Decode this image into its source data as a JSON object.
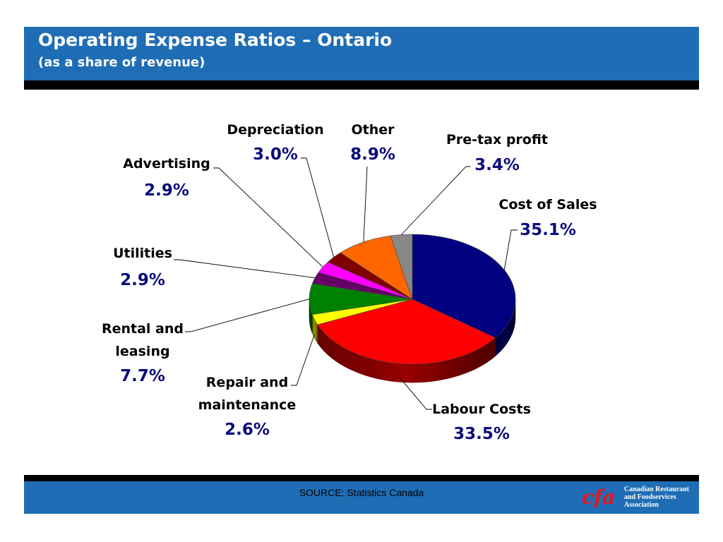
{
  "header": {
    "title": "Operating Expense Ratios – Ontario",
    "subtitle": "(as a share of revenue)"
  },
  "footer": {
    "source": "SOURCE: Statistics Canada",
    "logo_text": "cfa",
    "association": [
      "Canadian Restaurant",
      "and Foodservices",
      "Association"
    ]
  },
  "colors": {
    "brand_blue": "#1f6db5",
    "value_text": "#0c0c7c"
  },
  "chart_data": {
    "type": "pie",
    "style": "3d",
    "title": "Operating Expense Ratios – Ontario (as a share of revenue)",
    "unit": "%",
    "slices": [
      {
        "label": "Cost of Sales",
        "value": 35.1,
        "display": "35.1%",
        "color": "#000080"
      },
      {
        "label": "Labour Costs",
        "value": 33.5,
        "display": "33.5%",
        "color": "#ff0000"
      },
      {
        "label": "Repair and maintenance",
        "value": 2.6,
        "display": "2.6%",
        "color": "#ffff00"
      },
      {
        "label": "Rental and leasing",
        "value": 7.7,
        "display": "7.7%",
        "color": "#008000"
      },
      {
        "label": "Utilities",
        "value": 2.9,
        "display": "2.9%",
        "color": "#660066"
      },
      {
        "label": "Advertising",
        "value": 2.9,
        "display": "2.9%",
        "color": "#ff00ff"
      },
      {
        "label": "Depreciation",
        "value": 3.0,
        "display": "3.0%",
        "color": "#800000"
      },
      {
        "label": "Other",
        "value": 8.9,
        "display": "8.9%",
        "color": "#ff6600"
      },
      {
        "label": "Pre-tax profit",
        "value": 3.4,
        "display": "3.4%",
        "color": "#888888"
      }
    ]
  }
}
